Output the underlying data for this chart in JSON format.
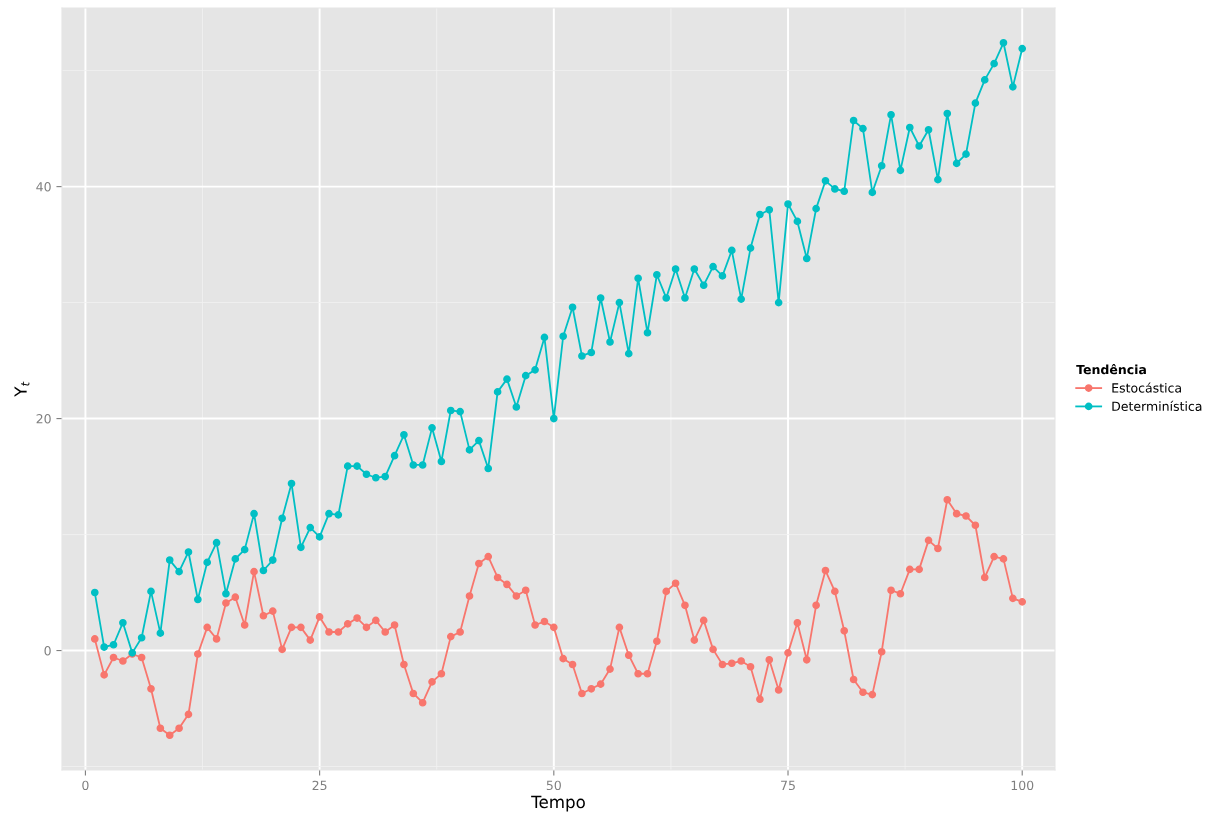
{
  "chart_data": {
    "type": "line",
    "xlabel": "Tempo",
    "ylabel": "Y$_{t}$",
    "legend_title": "Tendência",
    "x": [
      1,
      2,
      3,
      4,
      5,
      6,
      7,
      8,
      9,
      10,
      11,
      12,
      13,
      14,
      15,
      16,
      17,
      18,
      19,
      20,
      21,
      22,
      23,
      24,
      25,
      26,
      27,
      28,
      29,
      30,
      31,
      32,
      33,
      34,
      35,
      36,
      37,
      38,
      39,
      40,
      41,
      42,
      43,
      44,
      45,
      46,
      47,
      48,
      49,
      50,
      51,
      52,
      53,
      54,
      55,
      56,
      57,
      58,
      59,
      60,
      61,
      62,
      63,
      64,
      65,
      66,
      67,
      68,
      69,
      70,
      71,
      72,
      73,
      74,
      75,
      76,
      77,
      78,
      79,
      80,
      81,
      82,
      83,
      84,
      85,
      86,
      87,
      88,
      89,
      90,
      91,
      92,
      93,
      94,
      95,
      96,
      97,
      98,
      99,
      100
    ],
    "series": [
      {
        "name": "Estocástica",
        "color": "#f8766d",
        "values": [
          1.0,
          -2.1,
          -0.6,
          -0.9,
          -0.3,
          -0.6,
          -3.3,
          -6.7,
          -7.3,
          -6.7,
          -5.5,
          -0.3,
          2.0,
          1.0,
          4.1,
          4.6,
          2.2,
          6.8,
          3.0,
          3.4,
          0.1,
          2.0,
          2.0,
          0.9,
          2.9,
          1.6,
          1.6,
          2.3,
          2.8,
          2.0,
          2.6,
          1.6,
          2.2,
          -1.2,
          -3.7,
          -4.5,
          -2.7,
          -2.0,
          1.2,
          1.6,
          4.7,
          7.5,
          8.1,
          6.3,
          5.7,
          4.7,
          5.2,
          2.2,
          2.5,
          2.0,
          -0.7,
          -1.2,
          -3.7,
          -3.3,
          -2.9,
          -1.6,
          2.0,
          -0.4,
          -2.0,
          -2.0,
          0.8,
          5.1,
          5.8,
          3.9,
          0.9,
          2.6,
          0.1,
          -1.2,
          -1.1,
          -0.9,
          -1.4,
          -4.2,
          -0.8,
          -3.4,
          -0.2,
          2.4,
          -0.8,
          3.9,
          6.9,
          5.1,
          1.7,
          -2.5,
          -3.6,
          -3.8,
          -0.1,
          5.2,
          4.9,
          7.0,
          7.0,
          9.5,
          8.8,
          13.0,
          11.8,
          11.6,
          10.8,
          6.3,
          8.1,
          7.9,
          4.5,
          4.2
        ]
      },
      {
        "name": "Determinística",
        "color": "#00bfc4",
        "values": [
          5.0,
          0.3,
          0.5,
          2.4,
          -0.2,
          1.1,
          5.1,
          1.5,
          7.8,
          6.8,
          8.5,
          4.4,
          7.6,
          9.3,
          4.9,
          7.9,
          8.7,
          11.8,
          6.9,
          7.8,
          11.4,
          14.4,
          8.9,
          10.6,
          9.8,
          11.8,
          11.7,
          15.9,
          15.9,
          15.2,
          14.9,
          15.0,
          16.8,
          18.6,
          16.0,
          16.0,
          19.2,
          16.3,
          20.7,
          20.6,
          17.3,
          18.1,
          15.7,
          22.3,
          23.4,
          21.0,
          23.7,
          24.2,
          27.0,
          20.0,
          27.1,
          29.6,
          25.4,
          25.7,
          30.4,
          26.6,
          30.0,
          25.6,
          32.1,
          27.4,
          32.4,
          30.4,
          32.9,
          30.4,
          32.9,
          31.5,
          33.1,
          32.3,
          34.5,
          30.3,
          34.7,
          37.6,
          38.0,
          30.0,
          38.5,
          37.0,
          33.8,
          38.1,
          40.5,
          39.8,
          39.6,
          45.7,
          45.0,
          39.5,
          41.8,
          46.2,
          41.4,
          45.1,
          43.5,
          44.9,
          40.6,
          46.3,
          42.0,
          42.8,
          47.2,
          49.2,
          50.6,
          52.4,
          48.6,
          51.9
        ]
      }
    ],
    "xlim": [
      -2.5,
      103.5
    ],
    "ylim": [
      -10.3,
      55.4
    ],
    "xticks": [
      0,
      25,
      50,
      75,
      100
    ],
    "yticks": [
      0,
      20,
      40
    ],
    "grid": true,
    "legend": "right",
    "marker": "circle",
    "line_style": "solid"
  }
}
